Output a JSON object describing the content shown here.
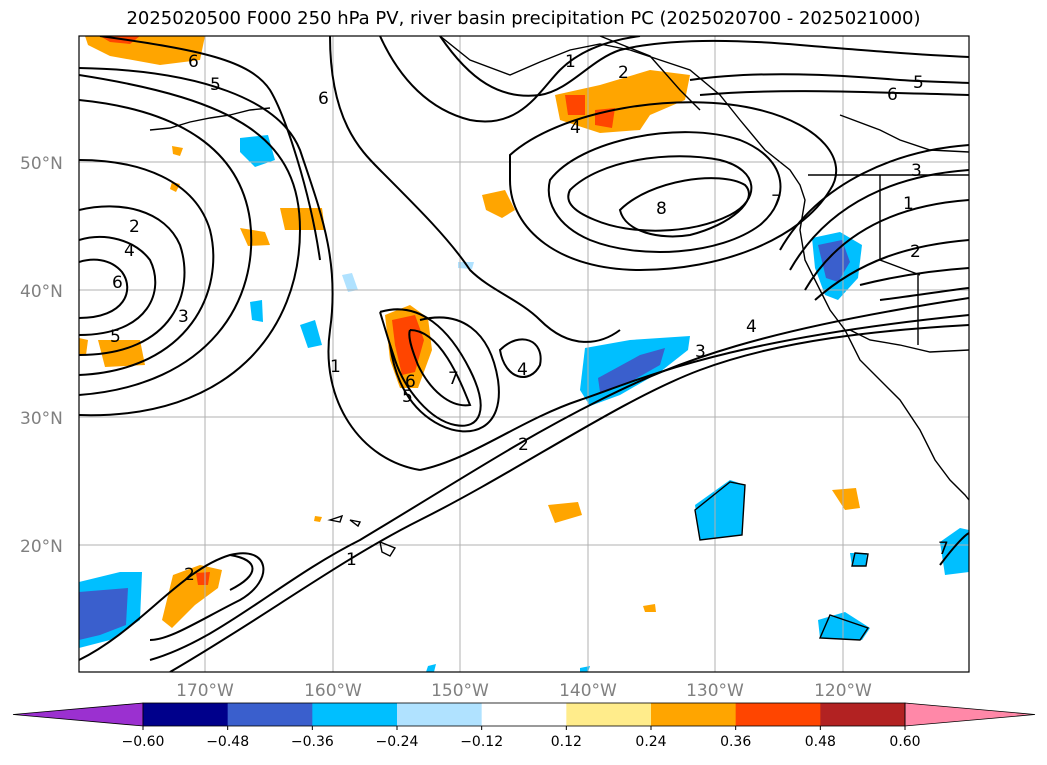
{
  "title": "2025020500 F000 250 hPa PV, river basin precipitation PC (2025020700 - 2025021000)",
  "lat_labels": [
    "50°N",
    "40°N",
    "30°N",
    "20°N"
  ],
  "lon_labels": [
    "170°W",
    "160°W",
    "150°W",
    "140°W",
    "130°W",
    "120°W"
  ],
  "colorbar": {
    "ticks": [
      "−0.60",
      "−0.48",
      "−0.36",
      "−0.24",
      "−0.12",
      "0.12",
      "0.24",
      "0.36",
      "0.48",
      "0.60"
    ],
    "colors": [
      "#9b30d0",
      "#00008b",
      "#3a5fcd",
      "#00bfff",
      "#b0e2ff",
      "#ffffff",
      "#ffec8b",
      "#ffa500",
      "#ff4500",
      "#b22222",
      "#ff88a8"
    ],
    "extend": "both"
  },
  "contour_labels": [
    "6",
    "5",
    "6",
    "1",
    "2",
    "5",
    "6",
    "4",
    "2",
    "4",
    "6",
    "3",
    "5",
    "1",
    "8",
    "7",
    "3",
    "1",
    "2",
    "6",
    "5",
    "7",
    "4",
    "3",
    "2",
    "1",
    "2",
    "4",
    "7"
  ],
  "colors": {
    "grid": "#b0b0b0",
    "contour": "#000000",
    "coast": "#000000",
    "label": "#808080"
  }
}
